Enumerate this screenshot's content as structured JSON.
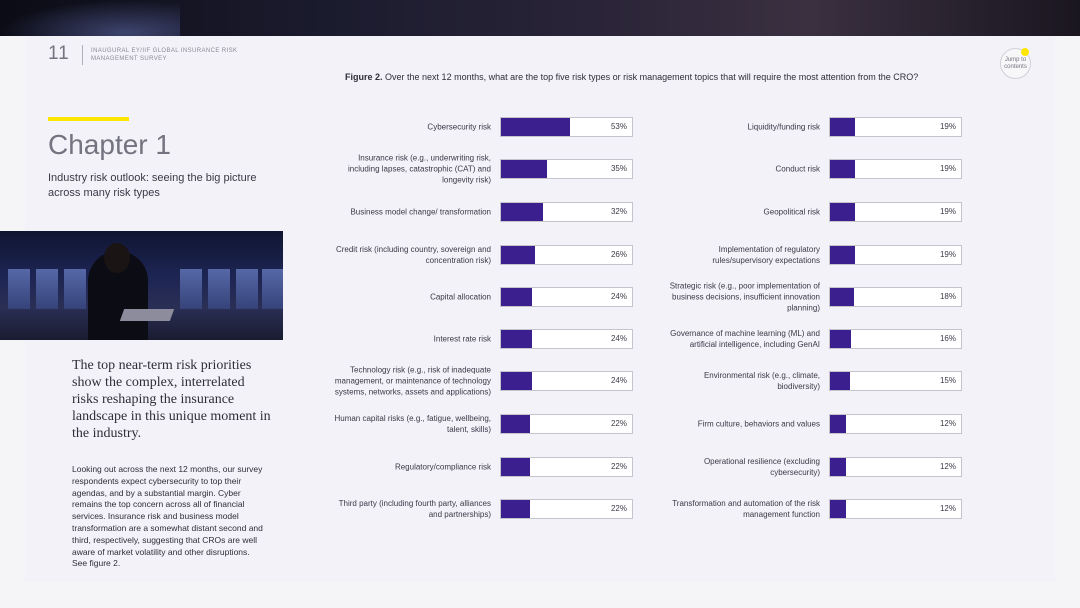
{
  "page_number": "11",
  "doc_title": "INAUGURAL EY/IIF GLOBAL INSURANCE RISK MANAGEMENT SURVEY",
  "jump_label": "Jump to contents",
  "chapter": {
    "title": "Chapter 1",
    "subtitle": "Industry risk outlook: seeing the big picture across many risk types"
  },
  "photo_icon": "person-with-laptop-photo",
  "quote": "The top near-term risk priorities show the complex, interrelated risks reshaping the insurance landscape in this unique moment in the industry.",
  "body_text": "Looking out across the next 12 months, our survey respondents expect cybersecurity to top their agendas, and by a substantial margin. Cyber remains the top concern across all of financial services. Insurance risk and business model transformation are a somewhat distant second and third, respectively, suggesting that CROs are well aware of market volatility and other disruptions. See figure 2.",
  "figure": {
    "label": "Figure 2.",
    "title": "Over the next 12 months, what are the top five risk types or risk management topics that will require the most attention from the CRO?"
  },
  "colors": {
    "bar": "#3b1f8e",
    "accent": "#ffe600"
  },
  "chart_data": {
    "type": "bar",
    "unit": "%",
    "xlim": [
      0,
      100
    ],
    "left": [
      {
        "label": "Cybersecurity risk",
        "value": 53
      },
      {
        "label": "Insurance risk (e.g., underwriting risk, including lapses, catastrophic (CAT) and longevity risk)",
        "value": 35
      },
      {
        "label": "Business model change/ transformation",
        "value": 32
      },
      {
        "label": "Credit risk (including country, sovereign and concentration risk)",
        "value": 26
      },
      {
        "label": "Capital allocation",
        "value": 24
      },
      {
        "label": "Interest rate risk",
        "value": 24
      },
      {
        "label": "Technology risk (e.g., risk of inadequate management, or maintenance of technology systems, networks, assets and applications)",
        "value": 24
      },
      {
        "label": "Human capital risks (e.g., fatigue, wellbeing, talent, skills)",
        "value": 22
      },
      {
        "label": "Regulatory/compliance risk",
        "value": 22
      },
      {
        "label": "Third party (including fourth party, alliances and partnerships)",
        "value": 22
      }
    ],
    "right": [
      {
        "label": "Liquidity/funding risk",
        "value": 19
      },
      {
        "label": "Conduct risk",
        "value": 19
      },
      {
        "label": "Geopolitical risk",
        "value": 19
      },
      {
        "label": "Implementation of regulatory rules/supervisory expectations",
        "value": 19
      },
      {
        "label": "Strategic risk (e.g., poor implementation of business decisions, insufficient innovation planning)",
        "value": 18
      },
      {
        "label": "Governance of machine learning (ML) and artificial intelligence, including GenAI",
        "value": 16
      },
      {
        "label": "Environmental risk (e.g., climate, biodiversity)",
        "value": 15
      },
      {
        "label": "Firm culture, behaviors and values",
        "value": 12
      },
      {
        "label": "Operational resilience (excluding cybersecurity)",
        "value": 12
      },
      {
        "label": "Transformation and automation of the risk management function",
        "value": 12
      }
    ]
  }
}
